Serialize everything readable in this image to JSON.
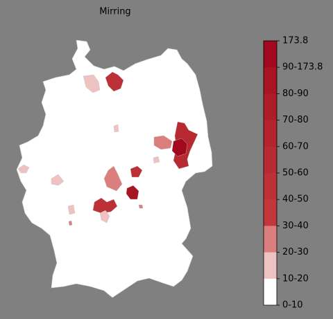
{
  "title": "Mirring",
  "colorbar": {
    "labels": [
      "173.8",
      "90-173.8",
      "80-90",
      "70-80",
      "60-70",
      "50-60",
      "40-50",
      "30-40",
      "20-30",
      "10-20",
      "0-10"
    ],
    "colors": [
      "#a1091f",
      "#a81422",
      "#ae1d27",
      "#b3242c",
      "#b82a31",
      "#bd3036",
      "#c3373b",
      "#da7e7e",
      "#efc2c2",
      "#ffffff"
    ]
  }
}
